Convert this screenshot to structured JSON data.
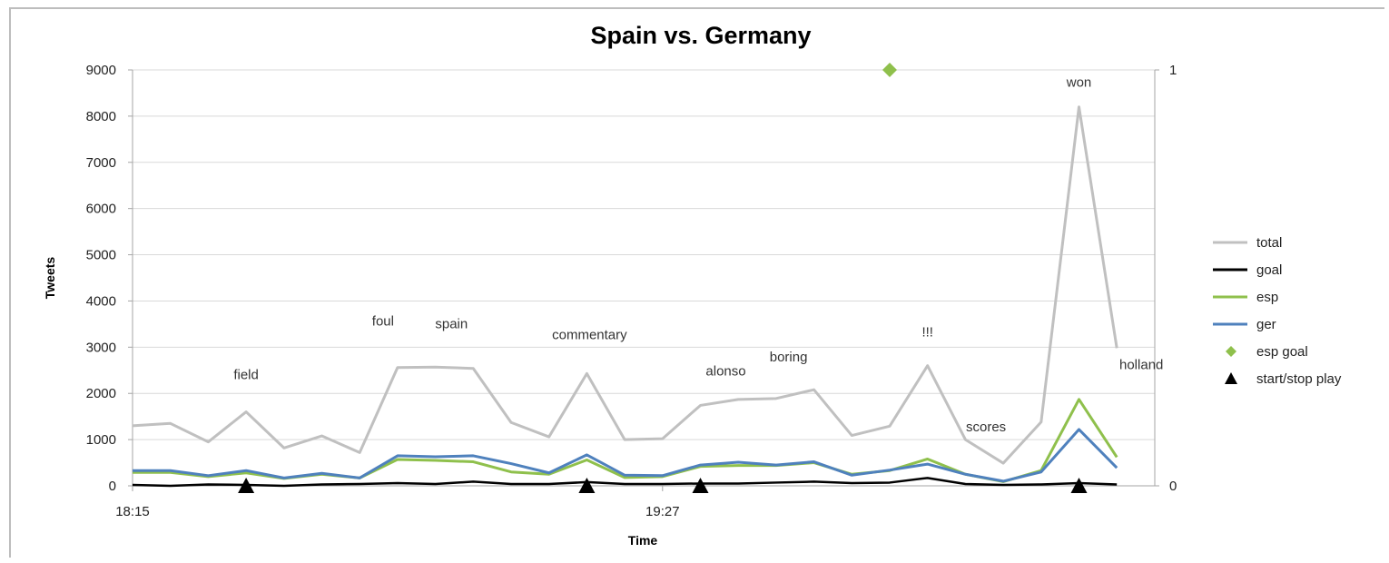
{
  "chart_data": {
    "type": "line",
    "title": "Spain vs. Germany",
    "xlabel": "Time",
    "ylabel": "Tweets",
    "ylim": [
      0,
      9000
    ],
    "y2lim": [
      0,
      1
    ],
    "yticks": [
      "0",
      "1000",
      "2000",
      "3000",
      "4000",
      "5000",
      "6000",
      "7000",
      "8000",
      "9000"
    ],
    "y2ticks": [
      "0",
      "1"
    ],
    "xtick_labels": [
      {
        "index": 0,
        "label": "18:15"
      },
      {
        "index": 14,
        "label": "19:27"
      }
    ],
    "grid": true,
    "legend_position": "right",
    "series": [
      {
        "name": "total",
        "color": "#c0c0c0",
        "values": [
          1300,
          1350,
          950,
          1600,
          820,
          1080,
          720,
          2560,
          2570,
          2540,
          1370,
          1060,
          2430,
          1000,
          1020,
          1740,
          1870,
          1890,
          2080,
          1090,
          1290,
          2600,
          1000,
          490,
          1380,
          8200,
          2980
        ]
      },
      {
        "name": "goal",
        "color": "#000000",
        "values": [
          20,
          0,
          30,
          20,
          0,
          30,
          40,
          60,
          40,
          90,
          40,
          40,
          80,
          40,
          40,
          50,
          50,
          70,
          90,
          60,
          70,
          170,
          40,
          20,
          30,
          60,
          30
        ]
      },
      {
        "name": "esp",
        "color": "#8fc04c",
        "values": [
          290,
          290,
          200,
          280,
          160,
          250,
          170,
          570,
          550,
          520,
          300,
          250,
          560,
          180,
          200,
          420,
          440,
          440,
          500,
          250,
          330,
          580,
          250,
          90,
          330,
          1870,
          620
        ]
      },
      {
        "name": "ger",
        "color": "#4f81bd",
        "values": [
          330,
          330,
          220,
          330,
          170,
          270,
          170,
          650,
          630,
          650,
          480,
          280,
          670,
          230,
          220,
          450,
          510,
          450,
          520,
          230,
          340,
          470,
          250,
          100,
          300,
          1220,
          390
        ]
      }
    ],
    "markers": [
      {
        "name": "esp goal",
        "color": "#8fc04c",
        "shape": "diamond",
        "axis": "y2",
        "points": [
          {
            "index": 20,
            "value": 1
          }
        ]
      },
      {
        "name": "start/stop play",
        "color": "#000000",
        "shape": "triangle",
        "axis": "y2",
        "points": [
          {
            "index": 3,
            "value": 0
          },
          {
            "index": 12,
            "value": 0
          },
          {
            "index": 15,
            "value": 0
          },
          {
            "index": 25,
            "value": 0
          }
        ]
      }
    ],
    "annotations": [
      {
        "index": 3,
        "text": "field"
      },
      {
        "index": 7,
        "text": "foul"
      },
      {
        "index": 9,
        "text": "spain"
      },
      {
        "index": 12,
        "text": "commentary"
      },
      {
        "index": 15,
        "text": "alonso"
      },
      {
        "index": 18,
        "text": "boring"
      },
      {
        "index": 21,
        "text": "!!!"
      },
      {
        "index": 23,
        "text": "scores"
      },
      {
        "index": 25,
        "text": "won"
      },
      {
        "index": 26,
        "text": "holland"
      }
    ]
  }
}
